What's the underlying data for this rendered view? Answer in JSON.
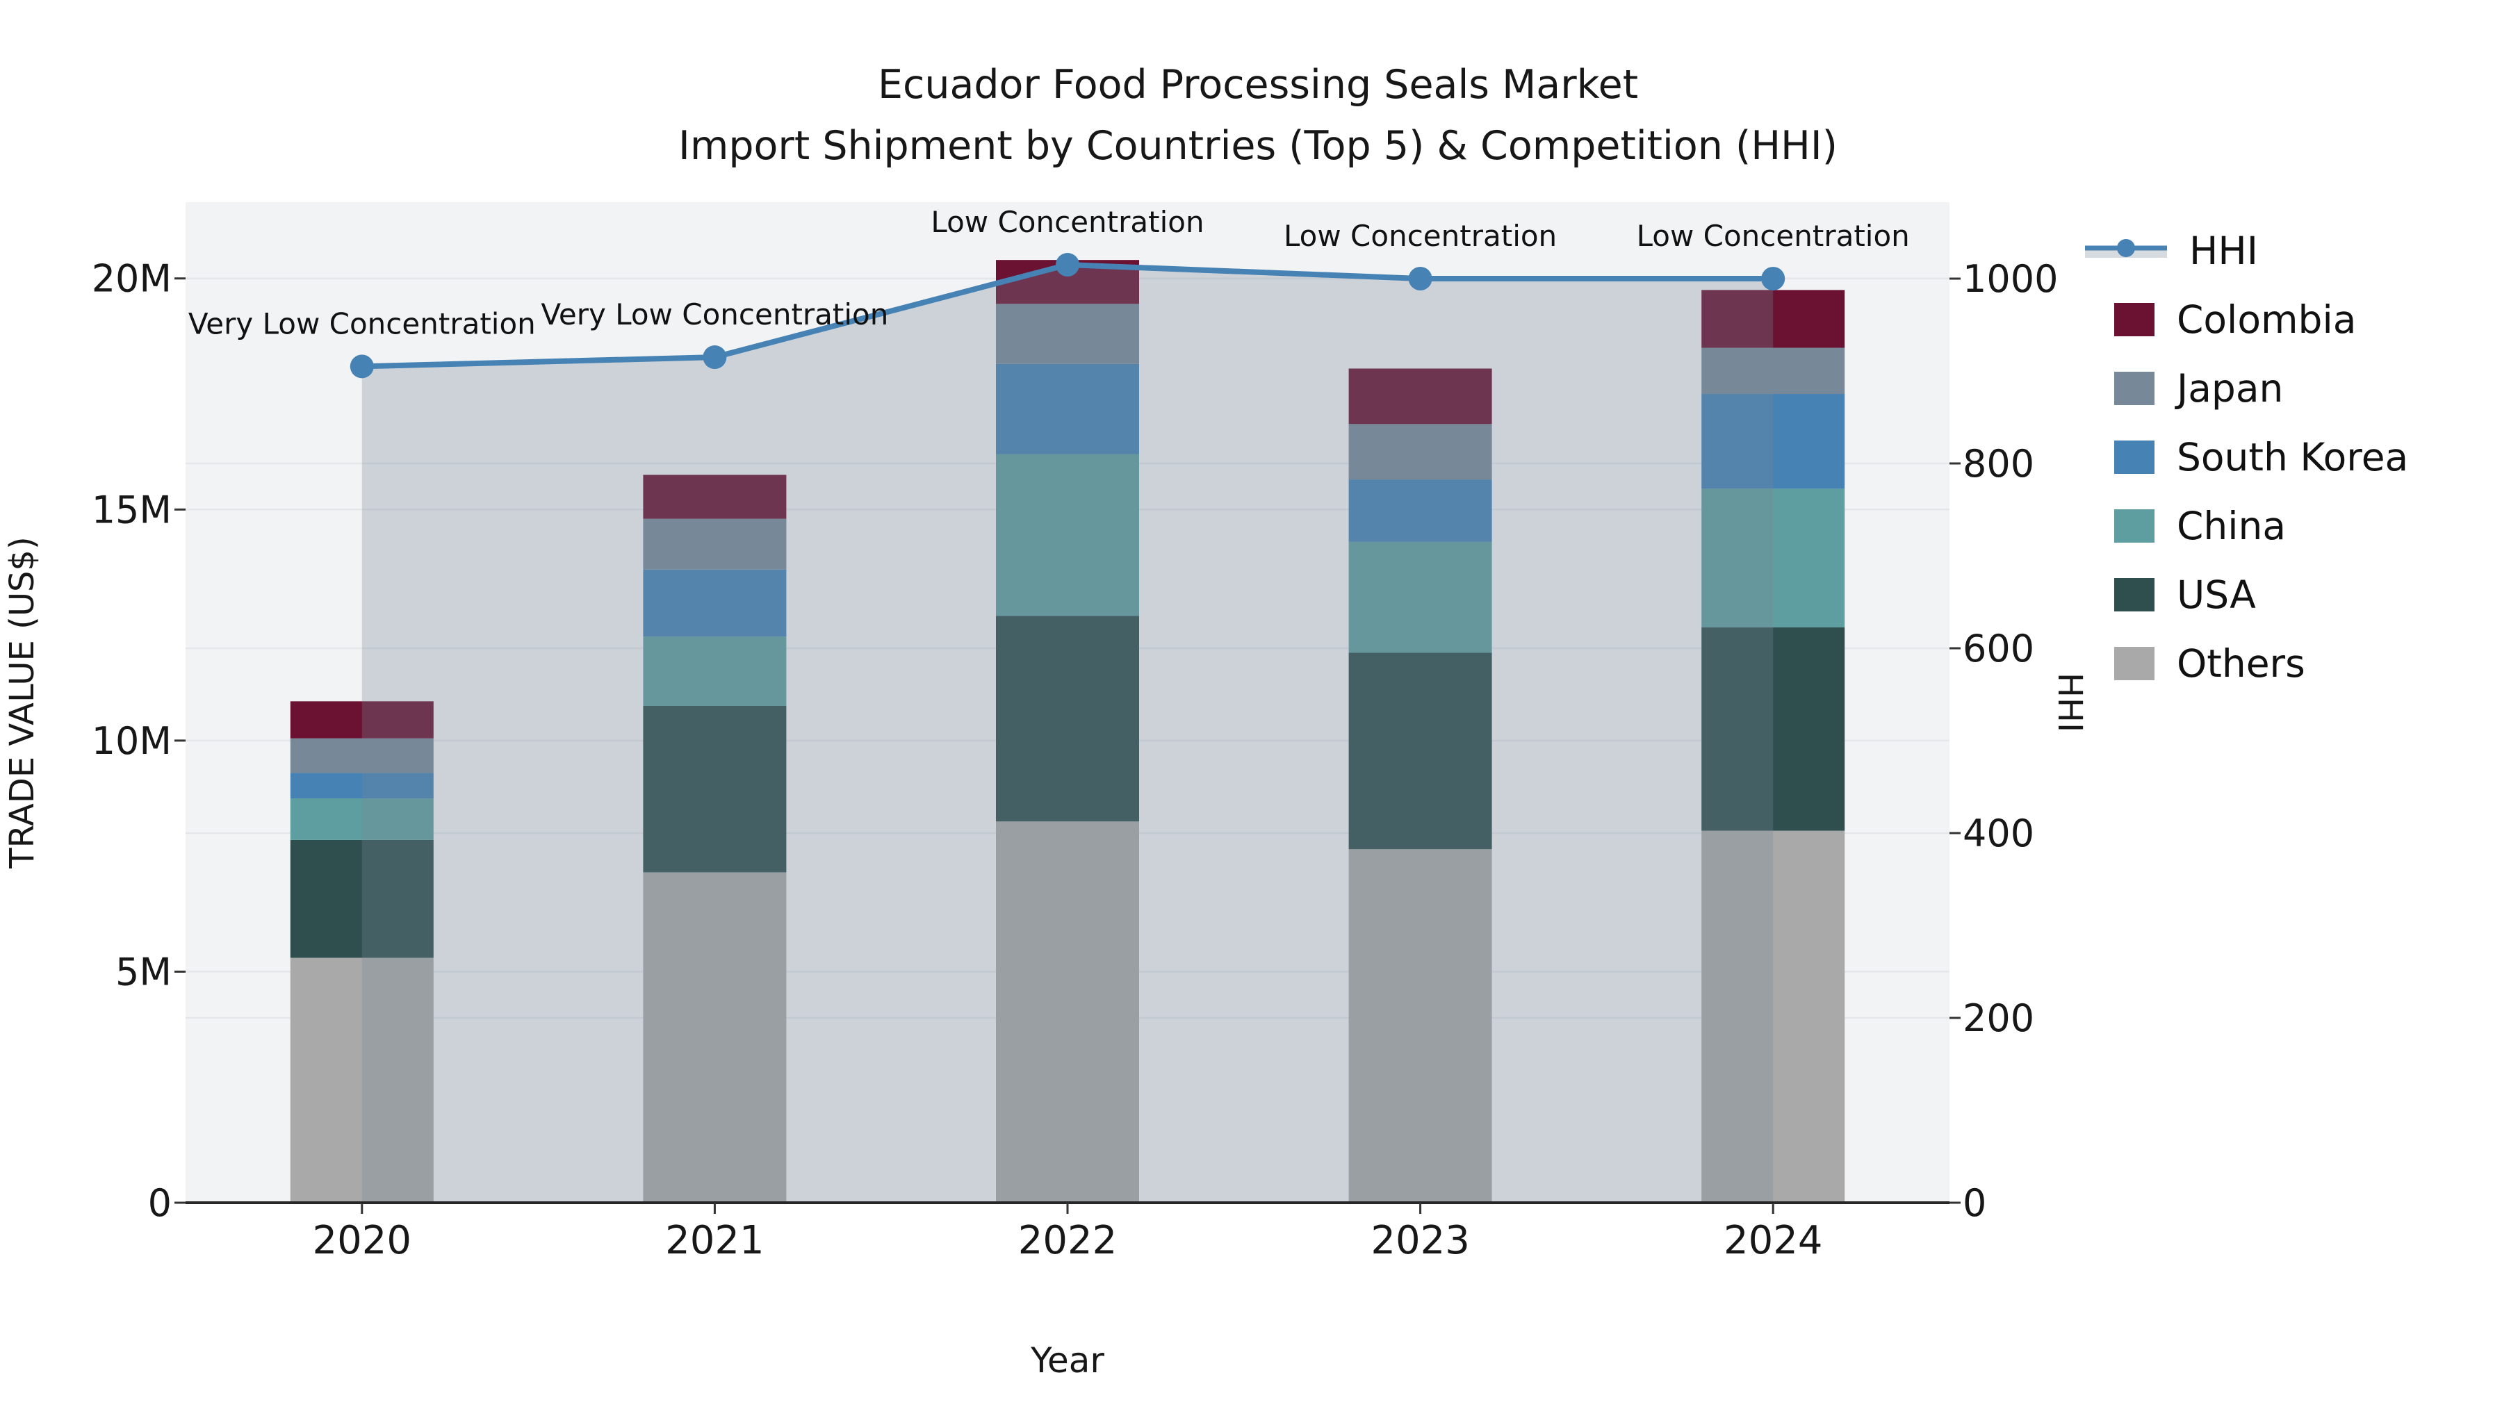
{
  "figure": {
    "title_line1": "Ecuador Food Processing Seals Market",
    "title_line2": "Import Shipment by Countries (Top 5) & Competition (HHI)"
  },
  "chart_data": {
    "type": "bar",
    "subtype": "stacked-bars-with-line-overlay-and-area-fill",
    "title": "Ecuador Food Processing Seals Market",
    "subtitle": "Import Shipment by Countries (Top 5) & Competition (HHI)",
    "xlabel": "Year",
    "ylabel": "TRADE VALUE (US$)",
    "ylabel_right": "HHI",
    "categories": [
      "2020",
      "2021",
      "2022",
      "2023",
      "2024"
    ],
    "value_unit": "million US$",
    "stack_order_note": "series listed bottom-to-top of stack",
    "series": [
      {
        "name": "Others",
        "color": "#a9a9a9",
        "values": [
          5.3,
          7.15,
          8.25,
          7.65,
          8.05
        ]
      },
      {
        "name": "USA",
        "color": "#2f4f4f",
        "values": [
          2.55,
          3.6,
          4.45,
          4.25,
          4.4
        ]
      },
      {
        "name": "China",
        "color": "#5f9ea0",
        "values": [
          0.9,
          1.5,
          3.5,
          2.4,
          3.0
        ]
      },
      {
        "name": "South Korea",
        "color": "#4682b4",
        "values": [
          0.55,
          1.45,
          1.95,
          1.35,
          2.05
        ]
      },
      {
        "name": "Japan",
        "color": "#778899",
        "values": [
          0.75,
          1.1,
          1.3,
          1.2,
          1.0
        ]
      },
      {
        "name": "Colombia",
        "color": "#6b1233",
        "values": [
          0.8,
          0.95,
          0.95,
          1.2,
          1.25
        ]
      }
    ],
    "bar_totals_millions": [
      10.85,
      15.75,
      20.4,
      18.05,
      19.75
    ],
    "line_series": {
      "name": "HHI",
      "axis": "right",
      "values": [
        905,
        915,
        1015,
        1000,
        1000
      ],
      "color": "#4682b4",
      "marker": "circle",
      "area_fill_color": "rgba(119,136,153,0.30)"
    },
    "annotations": [
      {
        "category": "2020",
        "text": "Very Low Concentration"
      },
      {
        "category": "2021",
        "text": "Very Low Concentration"
      },
      {
        "category": "2022",
        "text": "Low Concentration"
      },
      {
        "category": "2023",
        "text": "Low Concentration"
      },
      {
        "category": "2024",
        "text": "Low Concentration"
      }
    ],
    "left_axis": {
      "tick_values": [
        0,
        5,
        10,
        15,
        20
      ],
      "tick_labels": [
        "0",
        "5M",
        "10M",
        "15M",
        "20M"
      ],
      "max": 21.65
    },
    "right_axis": {
      "tick_values": [
        0,
        200,
        400,
        600,
        800,
        1000
      ],
      "tick_labels": [
        "0",
        "200",
        "400",
        "600",
        "800",
        "1000"
      ],
      "max": 1082.7
    },
    "grid": true,
    "legend_position": "right",
    "legend": [
      {
        "label": "HHI",
        "type": "line",
        "color": "#4682b4"
      },
      {
        "label": "Colombia",
        "type": "swatch",
        "color": "#6b1233"
      },
      {
        "label": "Japan",
        "type": "swatch",
        "color": "#778899"
      },
      {
        "label": "South Korea",
        "type": "swatch",
        "color": "#4682b4"
      },
      {
        "label": "China",
        "type": "swatch",
        "color": "#5f9ea0"
      },
      {
        "label": "USA",
        "type": "swatch",
        "color": "#2f4f4f"
      },
      {
        "label": "Others",
        "type": "swatch",
        "color": "#a9a9a9"
      }
    ],
    "colors": {
      "plot_background": "#f2f3f5",
      "gridline": "#e4e6e9",
      "axis_spine": "#262626",
      "text": "#171717"
    }
  }
}
